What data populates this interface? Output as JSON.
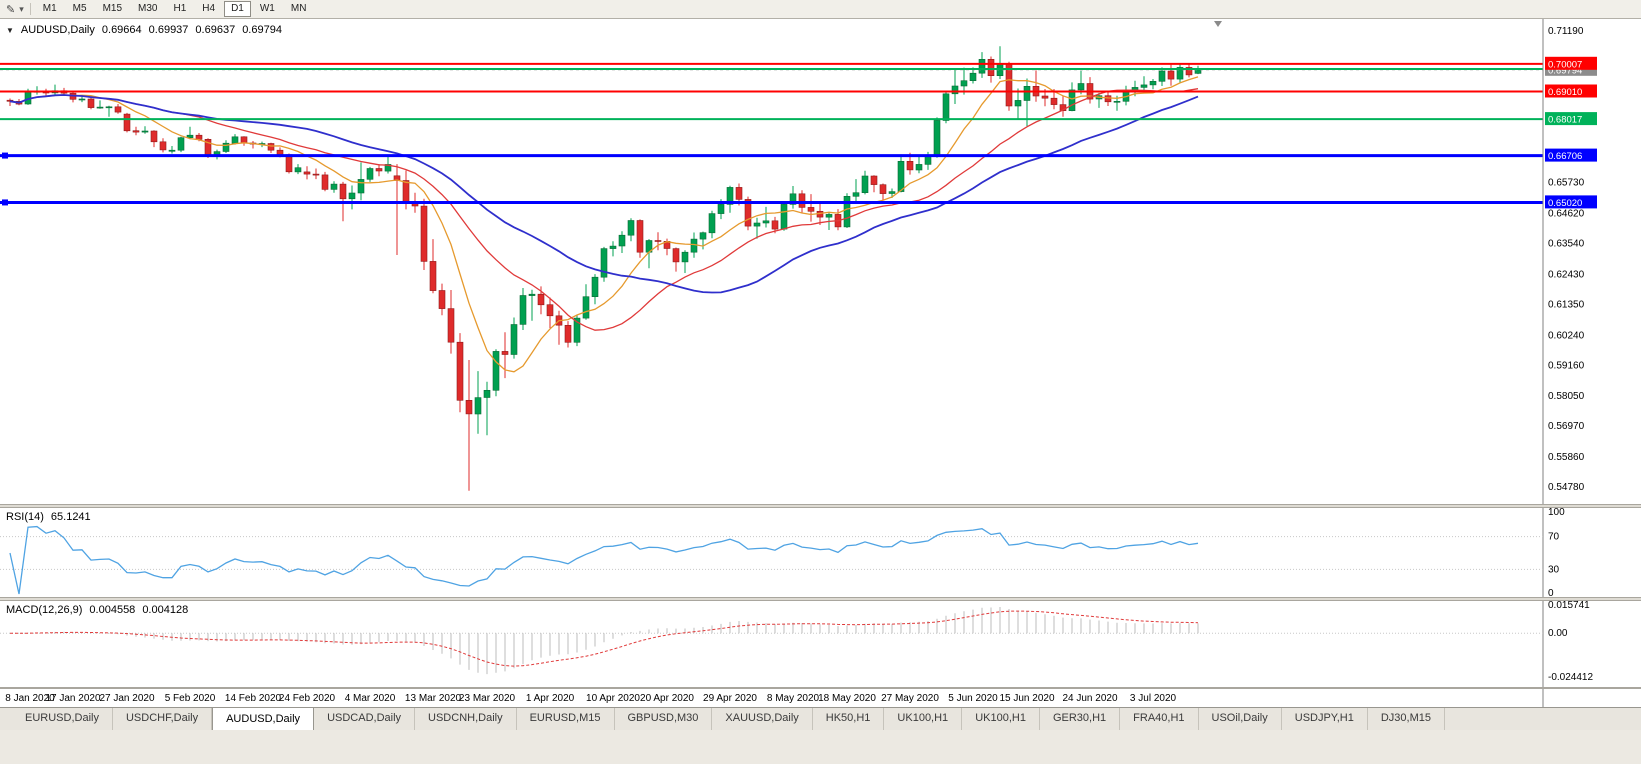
{
  "toolbar": {
    "tool_icon": "✎",
    "dropdown_icon": "▾",
    "timeframes": [
      "M1",
      "M5",
      "M15",
      "M30",
      "H1",
      "H4",
      "D1",
      "W1",
      "MN"
    ],
    "active_timeframe": "D1"
  },
  "chart_header": {
    "collapse_icon": "▼",
    "symbol": "AUDUSD,Daily",
    "open": "0.69664",
    "high": "0.69937",
    "low": "0.69637",
    "close": "0.69794"
  },
  "indicators": {
    "rsi_label": "RSI(14)",
    "rsi_value": "65.1241",
    "macd_label": "MACD(12,26,9)",
    "macd_value": "0.004558",
    "macd_signal_value": "0.004128"
  },
  "tabs": [
    "EURUSD,Daily",
    "USDCHF,Daily",
    "AUDUSD,Daily",
    "USDCAD,Daily",
    "USDCNH,Daily",
    "EURUSD,M15",
    "GBPUSD,M30",
    "XAUUSD,Daily",
    "HK50,H1",
    "UK100,H1",
    "UK100,H1",
    "GER30,H1",
    "FRA40,H1",
    "USOil,Daily",
    "USDJPY,H1",
    "DJ30,M15"
  ],
  "active_tab_index": 2,
  "colors": {
    "bull": "#00A050",
    "bull_edge": "#0A6B35",
    "bear": "#DF2B2B",
    "bear_edge": "#8F1A1A",
    "rsi_line": "#4FA3E3",
    "macd_hist": "#BDBDBD",
    "macd_signal": "#E03A3A",
    "bid_badge": "#8C8C8C"
  },
  "chart_data": {
    "type": "candlestick",
    "title": "AUDUSD Daily with RSI(14) and MACD(12,26,9)",
    "ylim": [
      0.5417,
      0.7162
    ],
    "price_axis_labels": [
      "0.71190",
      "0.65730",
      "0.64620",
      "0.63540",
      "0.62430",
      "0.61350",
      "0.60240",
      "0.59160",
      "0.58050",
      "0.56970",
      "0.55860",
      "0.54780"
    ],
    "current_price": "0.69794",
    "horizontal_lines": [
      {
        "price": 0.70007,
        "label": "0.70007",
        "color": "#FF0000",
        "width": 2
      },
      {
        "price": 0.6982,
        "label": "",
        "color": "#00B25A",
        "width": 2
      },
      {
        "price": 0.6901,
        "label": "0.69010",
        "color": "#FF0000",
        "width": 2
      },
      {
        "price": 0.68017,
        "label": "0.68017",
        "color": "#00B25A",
        "width": 2
      },
      {
        "price": 0.66706,
        "label": "0.66706",
        "color": "#0000FF",
        "width": 3,
        "handle": true
      },
      {
        "price": 0.6502,
        "label": "0.65020",
        "color": "#0000FF",
        "width": 3,
        "handle": true
      }
    ],
    "moving_averages": [
      {
        "period": 8,
        "color": "#E69A2E",
        "width": 1.3
      },
      {
        "period": 20,
        "color": "#E03A3A",
        "width": 1.3
      },
      {
        "period": 34,
        "color": "#2F2FCC",
        "width": 1.8
      }
    ],
    "rsi": {
      "period": 14,
      "levels": [
        "100",
        "70",
        "30",
        "0"
      ],
      "dotted_levels": [
        70,
        30
      ]
    },
    "macd": {
      "fast": 12,
      "slow": 26,
      "signal": 9,
      "axis_labels": [
        "0.015741",
        "0.00",
        "-0.024412"
      ]
    },
    "date_ticks": [
      [
        0,
        "8 Jan 2020"
      ],
      [
        7,
        "17 Jan 2020"
      ],
      [
        13,
        "27 Jan 2020"
      ],
      [
        20,
        "5 Feb 2020"
      ],
      [
        27,
        "14 Feb 2020"
      ],
      [
        33,
        "24 Feb 2020"
      ],
      [
        40,
        "4 Mar 2020"
      ],
      [
        47,
        "13 Mar 2020"
      ],
      [
        53,
        "23 Mar 2020"
      ],
      [
        60,
        "1 Apr 2020"
      ],
      [
        67,
        "10 Apr 2020"
      ],
      [
        73,
        "20 Apr 2020"
      ],
      [
        80,
        "29 Apr 2020"
      ],
      [
        87,
        "8 May 2020"
      ],
      [
        93,
        "18 May 2020"
      ],
      [
        100,
        "27 May 2020"
      ],
      [
        107,
        "5 Jun 2020"
      ],
      [
        113,
        "15 Jun 2020"
      ],
      [
        120,
        "24 Jun 2020"
      ],
      [
        127,
        "3 Jul 2020"
      ]
    ],
    "ohlc": [
      [
        "2020-01-08",
        0.687,
        0.6876,
        0.6849,
        0.6866
      ],
      [
        "2020-01-09",
        0.6866,
        0.6874,
        0.6852,
        0.6856
      ],
      [
        "2020-01-10",
        0.6856,
        0.6911,
        0.6853,
        0.69
      ],
      [
        "2020-01-13",
        0.69,
        0.692,
        0.689,
        0.6902
      ],
      [
        "2020-01-14",
        0.6902,
        0.6911,
        0.6885,
        0.6896
      ],
      [
        "2020-01-15",
        0.6896,
        0.6926,
        0.6886,
        0.6904
      ],
      [
        "2020-01-16",
        0.6904,
        0.6914,
        0.6885,
        0.6895
      ],
      [
        "2020-01-17",
        0.6895,
        0.69,
        0.6862,
        0.6873
      ],
      [
        "2020-01-20",
        0.6873,
        0.6885,
        0.6863,
        0.6874
      ],
      [
        "2020-01-21",
        0.6874,
        0.6878,
        0.6837,
        0.6843
      ],
      [
        "2020-01-22",
        0.6843,
        0.6869,
        0.6839,
        0.6845
      ],
      [
        "2020-01-23",
        0.6845,
        0.685,
        0.681,
        0.6846
      ],
      [
        "2020-01-24",
        0.6846,
        0.6856,
        0.6821,
        0.6827
      ],
      [
        "2020-01-27",
        0.682,
        0.6824,
        0.6754,
        0.676
      ],
      [
        "2020-01-28",
        0.676,
        0.6774,
        0.6744,
        0.6755
      ],
      [
        "2020-01-29",
        0.6755,
        0.6776,
        0.6749,
        0.6759
      ],
      [
        "2020-01-30",
        0.6759,
        0.6762,
        0.6701,
        0.672
      ],
      [
        "2020-01-31",
        0.672,
        0.6733,
        0.6682,
        0.6691
      ],
      [
        "2020-02-03",
        0.6686,
        0.6705,
        0.6678,
        0.669
      ],
      [
        "2020-02-04",
        0.669,
        0.6738,
        0.6683,
        0.6735
      ],
      [
        "2020-02-05",
        0.6735,
        0.6774,
        0.6729,
        0.6744
      ],
      [
        "2020-02-06",
        0.6744,
        0.6752,
        0.6722,
        0.6729
      ],
      [
        "2020-02-07",
        0.6729,
        0.6733,
        0.6662,
        0.667
      ],
      [
        "2020-02-10",
        0.667,
        0.6692,
        0.6657,
        0.6685
      ],
      [
        "2020-02-11",
        0.6685,
        0.6726,
        0.668,
        0.6715
      ],
      [
        "2020-02-12",
        0.6715,
        0.6748,
        0.671,
        0.6738
      ],
      [
        "2020-02-13",
        0.6738,
        0.674,
        0.6706,
        0.6716
      ],
      [
        "2020-02-14",
        0.6716,
        0.6723,
        0.6696,
        0.6712
      ],
      [
        "2020-02-17",
        0.6712,
        0.6721,
        0.6701,
        0.6714
      ],
      [
        "2020-02-18",
        0.6714,
        0.6717,
        0.668,
        0.669
      ],
      [
        "2020-02-19",
        0.669,
        0.67,
        0.6664,
        0.6674
      ],
      [
        "2020-02-20",
        0.6674,
        0.6678,
        0.6606,
        0.6612
      ],
      [
        "2020-02-21",
        0.6612,
        0.664,
        0.6604,
        0.6627
      ],
      [
        "2020-02-24",
        0.6612,
        0.6632,
        0.6585,
        0.6604
      ],
      [
        "2020-02-25",
        0.6604,
        0.6624,
        0.6586,
        0.6601
      ],
      [
        "2020-02-26",
        0.6601,
        0.6612,
        0.6542,
        0.6549
      ],
      [
        "2020-02-27",
        0.6549,
        0.6578,
        0.6537,
        0.6568
      ],
      [
        "2020-02-28",
        0.6568,
        0.6576,
        0.6434,
        0.6515
      ],
      [
        "2020-03-02",
        0.6515,
        0.6563,
        0.6477,
        0.6536
      ],
      [
        "2020-03-03",
        0.6536,
        0.6646,
        0.651,
        0.6585
      ],
      [
        "2020-03-04",
        0.6585,
        0.663,
        0.6576,
        0.6624
      ],
      [
        "2020-03-05",
        0.6624,
        0.664,
        0.6596,
        0.6615
      ],
      [
        "2020-03-06",
        0.6615,
        0.6672,
        0.6606,
        0.6639
      ],
      [
        "2020-03-09",
        0.6598,
        0.664,
        0.6313,
        0.6581
      ],
      [
        "2020-03-10",
        0.6581,
        0.6617,
        0.6477,
        0.6502
      ],
      [
        "2020-03-11",
        0.6502,
        0.6537,
        0.6465,
        0.6489
      ],
      [
        "2020-03-12",
        0.6489,
        0.6515,
        0.6259,
        0.629
      ],
      [
        "2020-03-13",
        0.629,
        0.637,
        0.6175,
        0.6185
      ],
      [
        "2020-03-16",
        0.6185,
        0.621,
        0.6096,
        0.612
      ],
      [
        "2020-03-17",
        0.612,
        0.6187,
        0.5958,
        0.5999
      ],
      [
        "2020-03-18",
        0.5999,
        0.6032,
        0.5747,
        0.579
      ],
      [
        "2020-03-19",
        0.579,
        0.5935,
        0.5465,
        0.5741
      ],
      [
        "2020-03-20",
        0.5741,
        0.5895,
        0.567,
        0.58
      ],
      [
        "2020-03-23",
        0.58,
        0.5857,
        0.5664,
        0.5826
      ],
      [
        "2020-03-24",
        0.5826,
        0.5974,
        0.5805,
        0.5966
      ],
      [
        "2020-03-25",
        0.5966,
        0.6035,
        0.587,
        0.5955
      ],
      [
        "2020-03-26",
        0.5955,
        0.6088,
        0.594,
        0.6063
      ],
      [
        "2020-03-27",
        0.6063,
        0.6194,
        0.6043,
        0.6167
      ],
      [
        "2020-03-30",
        0.6167,
        0.6188,
        0.6076,
        0.6172
      ],
      [
        "2020-03-31",
        0.6172,
        0.62,
        0.61,
        0.6134
      ],
      [
        "2020-04-01",
        0.6134,
        0.616,
        0.605,
        0.6094
      ],
      [
        "2020-04-02",
        0.6094,
        0.6112,
        0.599,
        0.606
      ],
      [
        "2020-04-03",
        0.606,
        0.6075,
        0.598,
        0.5999
      ],
      [
        "2020-04-06",
        0.5999,
        0.6096,
        0.5985,
        0.6086
      ],
      [
        "2020-04-07",
        0.6086,
        0.6208,
        0.608,
        0.6163
      ],
      [
        "2020-04-08",
        0.6163,
        0.6244,
        0.6136,
        0.6233
      ],
      [
        "2020-04-09",
        0.6233,
        0.6342,
        0.6217,
        0.6336
      ],
      [
        "2020-04-10",
        0.6336,
        0.6362,
        0.6308,
        0.6345
      ],
      [
        "2020-04-13",
        0.6345,
        0.6398,
        0.632,
        0.6384
      ],
      [
        "2020-04-14",
        0.6384,
        0.6445,
        0.6362,
        0.6437
      ],
      [
        "2020-04-15",
        0.6437,
        0.6441,
        0.6303,
        0.6323
      ],
      [
        "2020-04-16",
        0.6323,
        0.637,
        0.6265,
        0.6365
      ],
      [
        "2020-04-17",
        0.6365,
        0.6395,
        0.633,
        0.6362
      ],
      [
        "2020-04-20",
        0.6362,
        0.6372,
        0.6312,
        0.6336
      ],
      [
        "2020-04-21",
        0.6336,
        0.634,
        0.6253,
        0.6288
      ],
      [
        "2020-04-22",
        0.6288,
        0.633,
        0.6248,
        0.6323
      ],
      [
        "2020-04-23",
        0.6323,
        0.6394,
        0.6303,
        0.637
      ],
      [
        "2020-04-24",
        0.637,
        0.6397,
        0.6333,
        0.6393
      ],
      [
        "2020-04-27",
        0.6393,
        0.6472,
        0.6373,
        0.6462
      ],
      [
        "2020-04-28",
        0.6462,
        0.6514,
        0.6442,
        0.6495
      ],
      [
        "2020-04-29",
        0.6495,
        0.6562,
        0.6465,
        0.6556
      ],
      [
        "2020-04-30",
        0.6556,
        0.657,
        0.6491,
        0.6513
      ],
      [
        "2020-05-01",
        0.6513,
        0.6523,
        0.6402,
        0.6417
      ],
      [
        "2020-05-04",
        0.6417,
        0.6447,
        0.6372,
        0.6428
      ],
      [
        "2020-05-05",
        0.6428,
        0.6486,
        0.6412,
        0.6436
      ],
      [
        "2020-05-06",
        0.6436,
        0.645,
        0.6391,
        0.6406
      ],
      [
        "2020-05-07",
        0.6406,
        0.6505,
        0.64,
        0.6495
      ],
      [
        "2020-05-08",
        0.6495,
        0.6561,
        0.648,
        0.6533
      ],
      [
        "2020-05-11",
        0.6533,
        0.6546,
        0.6465,
        0.6484
      ],
      [
        "2020-05-12",
        0.6484,
        0.6532,
        0.6433,
        0.647
      ],
      [
        "2020-05-13",
        0.647,
        0.6507,
        0.6421,
        0.6449
      ],
      [
        "2020-05-14",
        0.6449,
        0.6468,
        0.6403,
        0.6459
      ],
      [
        "2020-05-15",
        0.6459,
        0.6478,
        0.6402,
        0.6414
      ],
      [
        "2020-05-18",
        0.6414,
        0.6535,
        0.641,
        0.6524
      ],
      [
        "2020-05-19",
        0.6524,
        0.6586,
        0.6506,
        0.6537
      ],
      [
        "2020-05-20",
        0.6537,
        0.6616,
        0.6531,
        0.6597
      ],
      [
        "2020-05-21",
        0.6597,
        0.66,
        0.6539,
        0.6566
      ],
      [
        "2020-05-22",
        0.6566,
        0.657,
        0.6509,
        0.6534
      ],
      [
        "2020-05-25",
        0.6534,
        0.6552,
        0.6518,
        0.6541
      ],
      [
        "2020-05-26",
        0.6541,
        0.6675,
        0.6538,
        0.665
      ],
      [
        "2020-05-27",
        0.665,
        0.6681,
        0.6602,
        0.6619
      ],
      [
        "2020-05-28",
        0.6619,
        0.6666,
        0.6607,
        0.6639
      ],
      [
        "2020-05-29",
        0.6639,
        0.6684,
        0.6619,
        0.6667
      ],
      [
        "2020-06-01",
        0.6667,
        0.6808,
        0.6663,
        0.6797
      ],
      [
        "2020-06-02",
        0.6797,
        0.6899,
        0.6787,
        0.6893
      ],
      [
        "2020-06-03",
        0.6893,
        0.6983,
        0.6856,
        0.6921
      ],
      [
        "2020-06-04",
        0.6921,
        0.6987,
        0.689,
        0.694
      ],
      [
        "2020-06-05",
        0.694,
        0.6988,
        0.693,
        0.6967
      ],
      [
        "2020-06-08",
        0.6967,
        0.7043,
        0.695,
        0.7017
      ],
      [
        "2020-06-09",
        0.7017,
        0.7027,
        0.6933,
        0.6958
      ],
      [
        "2020-06-10",
        0.6958,
        0.7064,
        0.6946,
        0.7
      ],
      [
        "2020-06-11",
        0.7,
        0.7008,
        0.6832,
        0.6849
      ],
      [
        "2020-06-12",
        0.6849,
        0.6912,
        0.6799,
        0.6869
      ],
      [
        "2020-06-15",
        0.6869,
        0.6948,
        0.6776,
        0.692
      ],
      [
        "2020-06-16",
        0.692,
        0.6977,
        0.6864,
        0.6885
      ],
      [
        "2020-06-17",
        0.6885,
        0.691,
        0.6848,
        0.6877
      ],
      [
        "2020-06-18",
        0.6877,
        0.691,
        0.6837,
        0.6854
      ],
      [
        "2020-06-19",
        0.6854,
        0.6886,
        0.681,
        0.6832
      ],
      [
        "2020-06-22",
        0.6832,
        0.6934,
        0.683,
        0.6907
      ],
      [
        "2020-06-23",
        0.6907,
        0.6976,
        0.6891,
        0.693
      ],
      [
        "2020-06-24",
        0.693,
        0.6953,
        0.6858,
        0.6874
      ],
      [
        "2020-06-25",
        0.6874,
        0.6896,
        0.6842,
        0.6886
      ],
      [
        "2020-06-26",
        0.6886,
        0.6901,
        0.6849,
        0.6864
      ],
      [
        "2020-06-29",
        0.6864,
        0.6886,
        0.6832,
        0.6866
      ],
      [
        "2020-06-30",
        0.6866,
        0.6922,
        0.6851,
        0.6903
      ],
      [
        "2020-07-01",
        0.6903,
        0.694,
        0.6884,
        0.6916
      ],
      [
        "2020-07-02",
        0.6916,
        0.6956,
        0.6902,
        0.6925
      ],
      [
        "2020-07-03",
        0.6925,
        0.6946,
        0.6909,
        0.6938
      ],
      [
        "2020-07-06",
        0.6938,
        0.6988,
        0.6921,
        0.6975
      ],
      [
        "2020-07-07",
        0.6975,
        0.6998,
        0.6922,
        0.6946
      ],
      [
        "2020-07-08",
        0.6946,
        0.6999,
        0.6933,
        0.6988
      ],
      [
        "2020-07-09",
        0.6988,
        0.7001,
        0.6952,
        0.6961
      ],
      [
        "2020-07-10",
        0.69664,
        0.69937,
        0.69637,
        0.69794
      ]
    ]
  }
}
